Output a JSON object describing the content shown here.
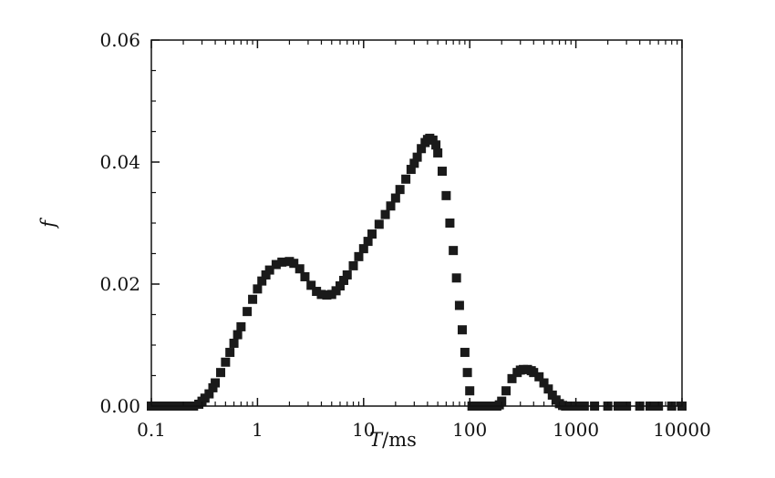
{
  "chart_data": {
    "type": "scatter",
    "title": "",
    "xlabel_var": "T",
    "xlabel_unit": "/ms",
    "ylabel": "f",
    "x_scale": "log",
    "xlim": [
      0.1,
      10000
    ],
    "ylim": [
      0,
      0.06
    ],
    "xticks": [
      0.1,
      1,
      10,
      100,
      1000,
      10000
    ],
    "xtick_labels": [
      "0.1",
      "1",
      "10",
      "100",
      "1000",
      "10000"
    ],
    "yticks": [
      0,
      0.02,
      0.04,
      0.06
    ],
    "ytick_labels": [
      "0.00",
      "0.02",
      "0.04",
      "0.06"
    ],
    "grid": false,
    "legend": "none",
    "marker": "square",
    "marker_color": "#1a1a1a",
    "series": [
      {
        "x": [
          0.1,
          0.11,
          0.13,
          0.14,
          0.16,
          0.18,
          0.2,
          0.22,
          0.25,
          0.28,
          0.3,
          0.32,
          0.35,
          0.38,
          0.4,
          0.45,
          0.5,
          0.55,
          0.6,
          0.65,
          0.7,
          0.8,
          0.9,
          1.0,
          1.1,
          1.2,
          1.3,
          1.5,
          1.7,
          2.0,
          2.2,
          2.5,
          2.8,
          3.2,
          3.6,
          4.0,
          4.5,
          5.0,
          5.5,
          6.0,
          6.5,
          7.0,
          8.0,
          9.0,
          10,
          11,
          12,
          14,
          16,
          18,
          20,
          22,
          25,
          28,
          30,
          32,
          35,
          38,
          40,
          42,
          45,
          48,
          50,
          55,
          60,
          65,
          70,
          75,
          80,
          85,
          90,
          95,
          100,
          105,
          110,
          120,
          130,
          140,
          150,
          160,
          170,
          180,
          190,
          200,
          220,
          250,
          280,
          300,
          320,
          350,
          380,
          400,
          450,
          500,
          550,
          600,
          650,
          700,
          750,
          800,
          850,
          900,
          1000,
          1200,
          1500,
          2000,
          2500,
          3000,
          4000,
          5000,
          6000,
          8000,
          10000
        ],
        "y": [
          0.0,
          0.0,
          0.0,
          0.0,
          0.0,
          0.0,
          0.0,
          0.0,
          0.0,
          0.0003,
          0.0008,
          0.0013,
          0.002,
          0.003,
          0.0038,
          0.0055,
          0.0072,
          0.0088,
          0.0103,
          0.0117,
          0.013,
          0.0155,
          0.0175,
          0.0192,
          0.0205,
          0.0215,
          0.0223,
          0.0232,
          0.0236,
          0.0237,
          0.0234,
          0.0225,
          0.0212,
          0.0198,
          0.0188,
          0.0183,
          0.0182,
          0.0183,
          0.0189,
          0.0197,
          0.0206,
          0.0215,
          0.023,
          0.0245,
          0.0258,
          0.027,
          0.0282,
          0.0298,
          0.0314,
          0.0328,
          0.0341,
          0.0355,
          0.0372,
          0.0388,
          0.0398,
          0.0408,
          0.0422,
          0.0432,
          0.0437,
          0.0439,
          0.0436,
          0.0428,
          0.0415,
          0.0385,
          0.0345,
          0.03,
          0.0255,
          0.021,
          0.0165,
          0.0125,
          0.0088,
          0.0055,
          0.0025,
          0.0,
          0.0,
          0.0,
          0.0,
          0.0,
          0.0,
          0.0,
          0.0,
          0.0,
          0.0002,
          0.0008,
          0.0025,
          0.0045,
          0.0055,
          0.0059,
          0.006,
          0.006,
          0.0058,
          0.0055,
          0.0048,
          0.0038,
          0.0028,
          0.0018,
          0.001,
          0.0004,
          0.0001,
          0.0,
          0.0,
          0.0,
          0.0,
          0.0,
          0.0,
          0.0,
          0.0,
          0.0,
          0.0,
          0.0,
          0.0,
          0.0,
          0.0
        ]
      }
    ]
  }
}
